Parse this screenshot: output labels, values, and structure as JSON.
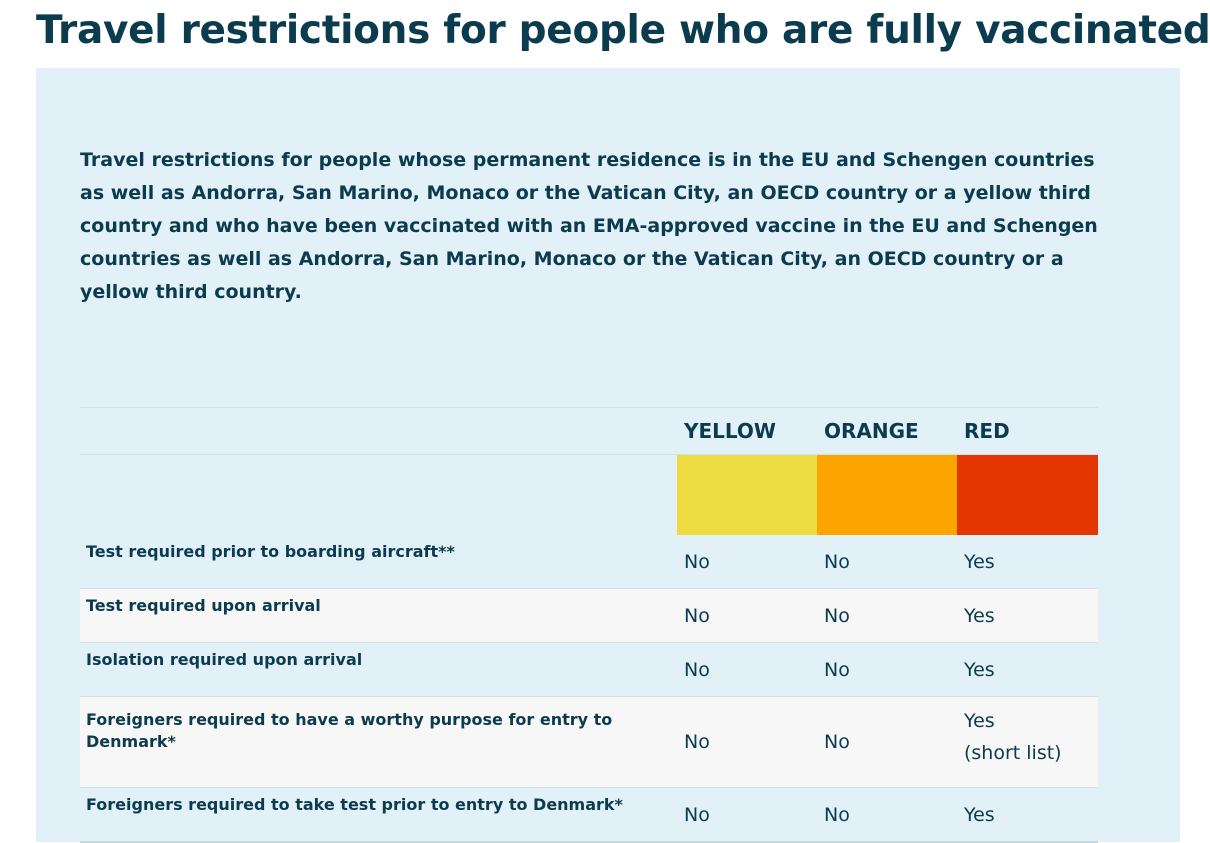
{
  "page": {
    "title": "Travel restrictions for people who are fully vaccinated"
  },
  "intro": {
    "text": "Travel restrictions for people whose permanent residence is in the EU and Schengen countries as well as Andorra, San Marino, Monaco or the Vatican City, an OECD country or a yellow third country and who have been vaccinated with an EMA-approved vaccine in the EU and Schengen countries as well as Andorra, San Marino, Monaco or the Vatican City, an OECD country or a yellow third country."
  },
  "table": {
    "columns": [
      {
        "label": "YELLOW",
        "color": "#ecdc42"
      },
      {
        "label": "ORANGE",
        "color": "#fca400"
      },
      {
        "label": "RED",
        "color": "#e33601"
      }
    ],
    "rows": [
      {
        "label": "Test required prior to boarding aircraft**",
        "yellow": "No",
        "orange": "No",
        "red": "Yes"
      },
      {
        "label": "Test required upon arrival",
        "yellow": "No",
        "orange": "No",
        "red": "Yes"
      },
      {
        "label": "Isolation required upon arrival",
        "yellow": "No",
        "orange": "No",
        "red": "Yes"
      },
      {
        "label": "Foreigners required to have a worthy purpose for entry to Denmark*",
        "yellow": "No",
        "orange": "No",
        "red": "Yes",
        "red_note": "(short list)"
      },
      {
        "label": "Foreigners required to take test prior to entry to Denmark*",
        "yellow": "No",
        "orange": "No",
        "red": "Yes"
      }
    ]
  }
}
